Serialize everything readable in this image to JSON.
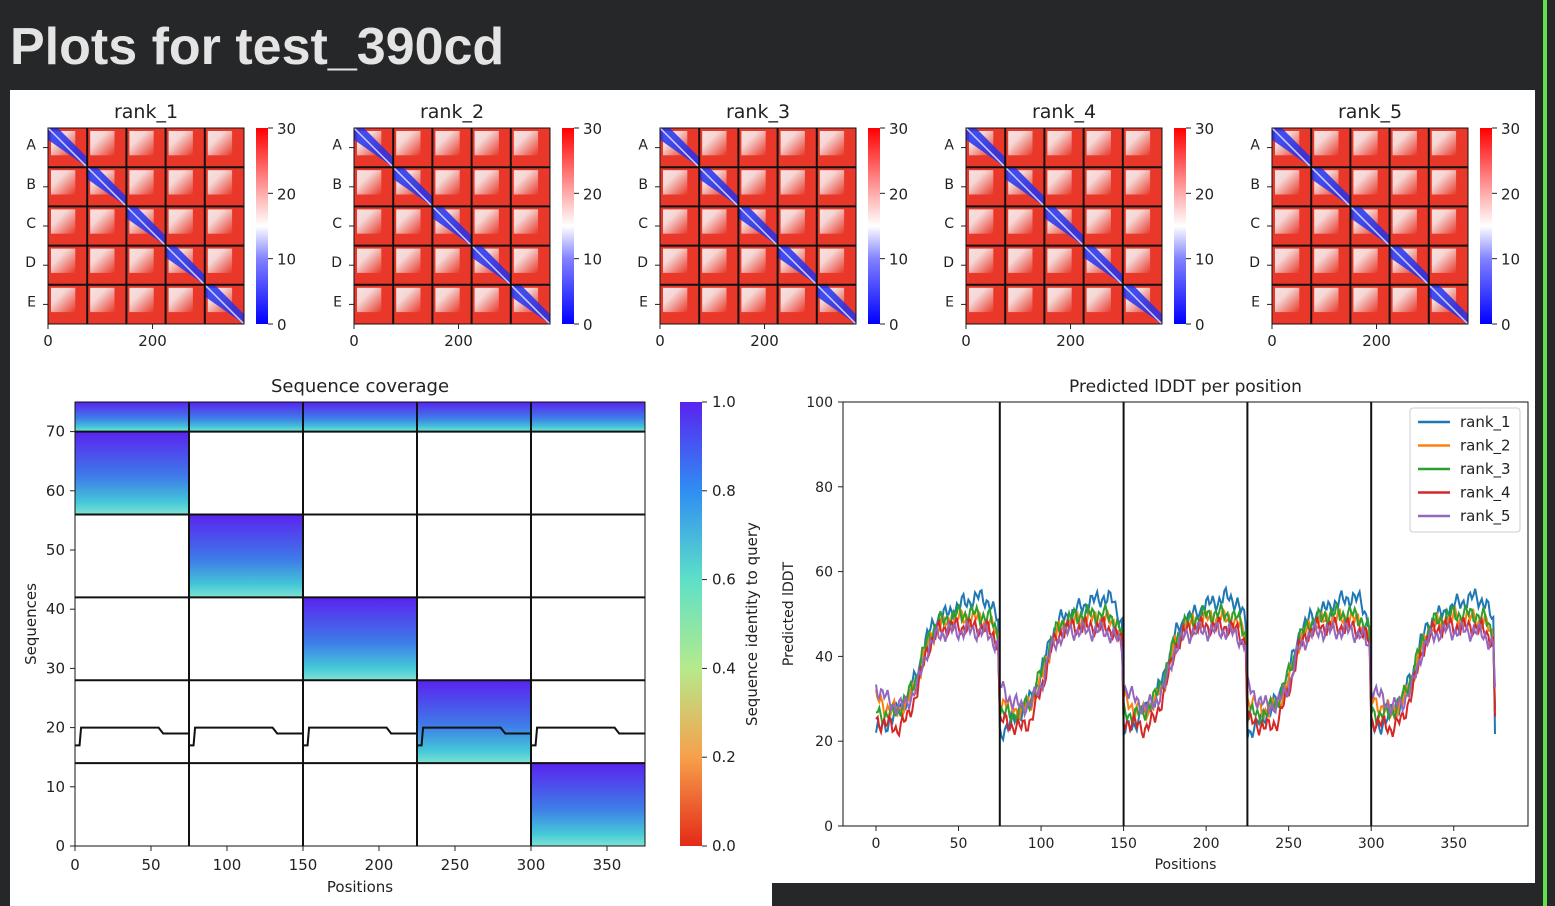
{
  "page": {
    "title": "Plots for test_390cd"
  },
  "colors": {
    "background": "#262729",
    "figure_bg": "#ffffff",
    "accent_border": "#5fe24a"
  },
  "chart_data": [
    {
      "type": "heatmap",
      "title": "rank_1",
      "yticklabels": [
        "A",
        "B",
        "C",
        "D",
        "E"
      ],
      "xticks": [
        0,
        200
      ],
      "colorbar_ticks": [
        0,
        10,
        20,
        30
      ],
      "vlim": [
        0,
        30
      ],
      "colormap": "bwr"
    },
    {
      "type": "heatmap",
      "title": "rank_2",
      "yticklabels": [
        "A",
        "B",
        "C",
        "D",
        "E"
      ],
      "xticks": [
        0,
        200
      ],
      "colorbar_ticks": [
        0,
        10,
        20,
        30
      ],
      "vlim": [
        0,
        30
      ],
      "colormap": "bwr"
    },
    {
      "type": "heatmap",
      "title": "rank_3",
      "yticklabels": [
        "A",
        "B",
        "C",
        "D",
        "E"
      ],
      "xticks": [
        0,
        200
      ],
      "colorbar_ticks": [
        0,
        10,
        20,
        30
      ],
      "vlim": [
        0,
        30
      ],
      "colormap": "bwr"
    },
    {
      "type": "heatmap",
      "title": "rank_4",
      "yticklabels": [
        "A",
        "B",
        "C",
        "D",
        "E"
      ],
      "xticks": [
        0,
        200
      ],
      "colorbar_ticks": [
        0,
        10,
        20,
        30
      ],
      "vlim": [
        0,
        30
      ],
      "colormap": "bwr"
    },
    {
      "type": "heatmap",
      "title": "rank_5",
      "yticklabels": [
        "A",
        "B",
        "C",
        "D",
        "E"
      ],
      "xticks": [
        0,
        200
      ],
      "colorbar_ticks": [
        0,
        10,
        20,
        30
      ],
      "vlim": [
        0,
        30
      ],
      "colormap": "bwr"
    },
    {
      "type": "heatmap",
      "title": "Sequence coverage",
      "xlabel": "Positions",
      "ylabel": "Sequences",
      "xlim": [
        0,
        375
      ],
      "ylim": [
        0,
        75
      ],
      "xticks": [
        0,
        50,
        100,
        150,
        200,
        250,
        300,
        350
      ],
      "yticks": [
        0,
        10,
        20,
        30,
        40,
        50,
        60,
        70
      ],
      "colorbar_label": "Sequence identity to query",
      "colorbar_ticks": [
        0.0,
        0.2,
        0.4,
        0.6,
        0.8,
        1.0
      ],
      "colormap": "rainbow_r",
      "chain_boundaries_x": [
        75,
        150,
        225,
        300
      ],
      "blocks": [
        {
          "x": [
            0,
            375
          ],
          "y": [
            70,
            75
          ]
        },
        {
          "x": [
            0,
            75
          ],
          "y": [
            56,
            70
          ]
        },
        {
          "x": [
            75,
            150
          ],
          "y": [
            42,
            56
          ]
        },
        {
          "x": [
            150,
            225
          ],
          "y": [
            28,
            42
          ]
        },
        {
          "x": [
            225,
            300
          ],
          "y": [
            14,
            28
          ]
        },
        {
          "x": [
            300,
            375
          ],
          "y": [
            0,
            14
          ]
        }
      ],
      "coverage_line": [
        17,
        17,
        20,
        20,
        20,
        20,
        20,
        19,
        19
      ]
    },
    {
      "type": "line",
      "title": "Predicted lDDT per position",
      "xlabel": "Positions",
      "ylabel": "Predicted lDDT",
      "xlim": [
        0,
        375
      ],
      "ylim": [
        0,
        100
      ],
      "xticks": [
        0,
        50,
        100,
        150,
        200,
        250,
        300,
        350
      ],
      "yticks": [
        0,
        20,
        40,
        60,
        80,
        100
      ],
      "chain_boundaries_x": [
        75,
        150,
        225,
        300
      ],
      "legend_position": "top-right",
      "series": [
        {
          "name": "rank_1",
          "color": "#1f77b4",
          "profile": [
            22,
            24,
            27,
            30,
            36,
            45,
            49,
            50,
            52,
            53,
            54,
            53,
            47
          ]
        },
        {
          "name": "rank_2",
          "color": "#ff7f0e",
          "profile": [
            30,
            28,
            27,
            29,
            34,
            43,
            47,
            48,
            49,
            49,
            49,
            48,
            44
          ]
        },
        {
          "name": "rank_3",
          "color": "#2ca02c",
          "profile": [
            27,
            26,
            27,
            30,
            36,
            44,
            48,
            49,
            50,
            50,
            50,
            49,
            45
          ]
        },
        {
          "name": "rank_4",
          "color": "#d62728",
          "profile": [
            25,
            24,
            23,
            25,
            32,
            42,
            46,
            47,
            47,
            47,
            47,
            46,
            43
          ]
        },
        {
          "name": "rank_5",
          "color": "#9467bd",
          "profile": [
            33,
            30,
            28,
            29,
            33,
            42,
            45,
            46,
            46,
            46,
            46,
            45,
            42
          ]
        }
      ]
    }
  ]
}
